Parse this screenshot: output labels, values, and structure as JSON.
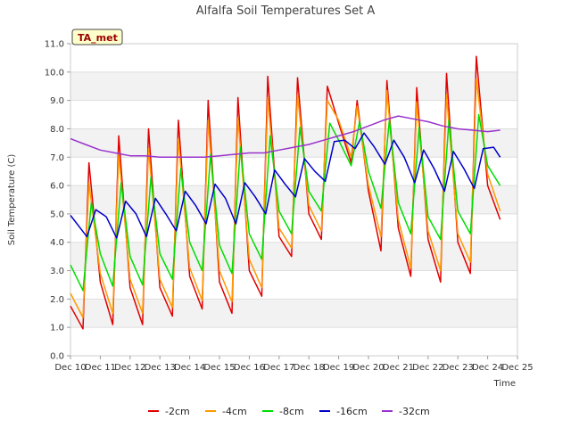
{
  "chart_data": {
    "type": "line",
    "title": "Alfalfa Soil Temperatures Set A",
    "xlabel": "Time",
    "ylabel": "Soil Temperature (C)",
    "badge": "TA_met",
    "ylim": [
      0,
      11
    ],
    "xlim": [
      10,
      25
    ],
    "yticks": [
      "0.0",
      "1.0",
      "2.0",
      "3.0",
      "4.0",
      "5.0",
      "6.0",
      "7.0",
      "8.0",
      "9.0",
      "10.0",
      "11.0"
    ],
    "xticks": [
      {
        "v": 10,
        "label": "Dec 10"
      },
      {
        "v": 11,
        "label": "Dec 11"
      },
      {
        "v": 12,
        "label": "Dec 12"
      },
      {
        "v": 13,
        "label": "Dec 13"
      },
      {
        "v": 14,
        "label": "Dec 14"
      },
      {
        "v": 15,
        "label": "Dec 15"
      },
      {
        "v": 16,
        "label": "Dec 16"
      },
      {
        "v": 17,
        "label": "Dec 17"
      },
      {
        "v": 18,
        "label": "Dec 18"
      },
      {
        "v": 19,
        "label": "Dec 19"
      },
      {
        "v": 20,
        "label": "Dec 20"
      },
      {
        "v": 21,
        "label": "Dec 21"
      },
      {
        "v": 22,
        "label": "Dec 22"
      },
      {
        "v": 23,
        "label": "Dec 23"
      },
      {
        "v": 24,
        "label": "Dec 24"
      },
      {
        "v": 25,
        "label": "Dec 25"
      }
    ],
    "grid": true,
    "legend_position": "bottom",
    "series": [
      {
        "name": "-2cm",
        "color": "#e00000",
        "x": [
          10.0,
          10.42,
          10.62,
          11.0,
          11.42,
          11.62,
          12.0,
          12.42,
          12.62,
          13.0,
          13.42,
          13.62,
          14.0,
          14.42,
          14.62,
          15.0,
          15.42,
          15.62,
          16.0,
          16.42,
          16.62,
          17.0,
          17.42,
          17.62,
          18.0,
          18.42,
          18.62,
          19.0,
          19.42,
          19.62,
          20.0,
          20.42,
          20.62,
          21.0,
          21.42,
          21.62,
          22.0,
          22.42,
          22.62,
          23.0,
          23.42,
          23.62,
          24.0,
          24.42
        ],
        "y": [
          1.75,
          0.95,
          6.8,
          2.6,
          1.1,
          7.75,
          2.4,
          1.1,
          8.0,
          2.4,
          1.4,
          8.3,
          2.8,
          1.65,
          9.0,
          2.6,
          1.5,
          9.1,
          3.0,
          2.1,
          9.85,
          4.2,
          3.5,
          9.8,
          5.0,
          4.1,
          9.5,
          8.2,
          6.8,
          9.0,
          5.8,
          3.7,
          9.7,
          4.5,
          2.8,
          9.45,
          4.1,
          2.6,
          9.95,
          4.0,
          2.9,
          10.55,
          6.0,
          4.8
        ]
      },
      {
        "name": "-4cm",
        "color": "#ff9900",
        "x": [
          10.0,
          10.42,
          10.62,
          11.0,
          11.42,
          11.62,
          12.0,
          12.42,
          12.62,
          13.0,
          13.42,
          13.62,
          14.0,
          14.42,
          14.62,
          15.0,
          15.42,
          15.62,
          16.0,
          16.42,
          16.62,
          17.0,
          17.42,
          17.62,
          18.0,
          18.42,
          18.62,
          19.0,
          19.42,
          19.62,
          20.0,
          20.42,
          20.62,
          21.0,
          21.42,
          21.62,
          22.0,
          22.42,
          22.62,
          23.0,
          23.42,
          23.62,
          24.0,
          24.42
        ],
        "y": [
          2.2,
          1.35,
          6.1,
          2.9,
          1.5,
          7.1,
          2.7,
          1.5,
          7.3,
          2.7,
          1.7,
          7.65,
          3.1,
          1.95,
          8.3,
          3.0,
          1.9,
          8.4,
          3.4,
          2.4,
          9.1,
          4.5,
          3.8,
          9.2,
          5.3,
          4.4,
          9.0,
          8.3,
          7.0,
          8.8,
          6.0,
          4.2,
          9.35,
          4.8,
          3.1,
          8.95,
          4.4,
          3.0,
          9.2,
          4.3,
          3.3,
          9.75,
          6.4,
          5.1
        ]
      },
      {
        "name": "-8cm",
        "color": "#00dd00",
        "x": [
          10.0,
          10.42,
          10.7,
          11.0,
          11.42,
          11.7,
          12.0,
          12.42,
          12.7,
          13.0,
          13.42,
          13.7,
          14.0,
          14.42,
          14.7,
          15.0,
          15.42,
          15.7,
          16.0,
          16.42,
          16.7,
          17.0,
          17.42,
          17.7,
          18.0,
          18.42,
          18.7,
          19.0,
          19.42,
          19.7,
          20.0,
          20.42,
          20.7,
          21.0,
          21.42,
          21.7,
          22.0,
          22.42,
          22.7,
          23.0,
          23.42,
          23.7,
          24.0,
          24.42
        ],
        "y": [
          3.2,
          2.3,
          5.4,
          3.6,
          2.45,
          6.1,
          3.5,
          2.5,
          6.3,
          3.6,
          2.7,
          6.6,
          4.0,
          3.0,
          7.1,
          3.9,
          2.9,
          7.35,
          4.3,
          3.4,
          7.75,
          5.1,
          4.3,
          8.05,
          5.8,
          5.1,
          8.2,
          7.6,
          6.7,
          8.25,
          6.5,
          5.2,
          8.3,
          5.4,
          4.3,
          8.05,
          4.9,
          4.1,
          8.3,
          5.1,
          4.3,
          8.5,
          6.7,
          6.0
        ]
      },
      {
        "name": "-16cm",
        "color": "#0000cc",
        "x": [
          10.0,
          10.55,
          10.85,
          11.2,
          11.55,
          11.85,
          12.2,
          12.55,
          12.85,
          13.2,
          13.55,
          13.85,
          14.2,
          14.55,
          14.85,
          15.2,
          15.55,
          15.85,
          16.2,
          16.55,
          16.85,
          17.2,
          17.55,
          17.85,
          18.2,
          18.55,
          18.85,
          19.2,
          19.55,
          19.85,
          20.2,
          20.55,
          20.85,
          21.2,
          21.55,
          21.85,
          22.2,
          22.55,
          22.85,
          23.2,
          23.55,
          23.85,
          24.2,
          24.42
        ],
        "y": [
          4.95,
          4.2,
          5.15,
          4.9,
          4.15,
          5.45,
          5.0,
          4.2,
          5.55,
          5.0,
          4.4,
          5.8,
          5.3,
          4.65,
          6.05,
          5.55,
          4.65,
          6.1,
          5.6,
          5.0,
          6.55,
          6.05,
          5.6,
          6.95,
          6.5,
          6.15,
          7.55,
          7.6,
          7.3,
          7.85,
          7.35,
          6.75,
          7.6,
          7.0,
          6.1,
          7.25,
          6.6,
          5.8,
          7.2,
          6.6,
          5.9,
          7.3,
          7.35,
          7.0
        ]
      },
      {
        "name": "-32cm",
        "color": "#9933cc",
        "x": [
          10.0,
          10.5,
          11.0,
          11.5,
          12.0,
          12.5,
          13.0,
          13.5,
          14.0,
          14.5,
          15.0,
          15.5,
          16.0,
          16.5,
          17.0,
          17.5,
          18.0,
          18.5,
          19.0,
          19.5,
          20.0,
          20.5,
          21.0,
          21.5,
          22.0,
          22.5,
          23.0,
          23.5,
          24.0,
          24.42
        ],
        "y": [
          7.65,
          7.45,
          7.25,
          7.15,
          7.05,
          7.05,
          7.0,
          7.0,
          7.0,
          7.0,
          7.05,
          7.1,
          7.15,
          7.15,
          7.25,
          7.35,
          7.45,
          7.6,
          7.75,
          7.9,
          8.1,
          8.3,
          8.45,
          8.35,
          8.25,
          8.1,
          8.0,
          7.95,
          7.9,
          7.95
        ]
      }
    ]
  }
}
